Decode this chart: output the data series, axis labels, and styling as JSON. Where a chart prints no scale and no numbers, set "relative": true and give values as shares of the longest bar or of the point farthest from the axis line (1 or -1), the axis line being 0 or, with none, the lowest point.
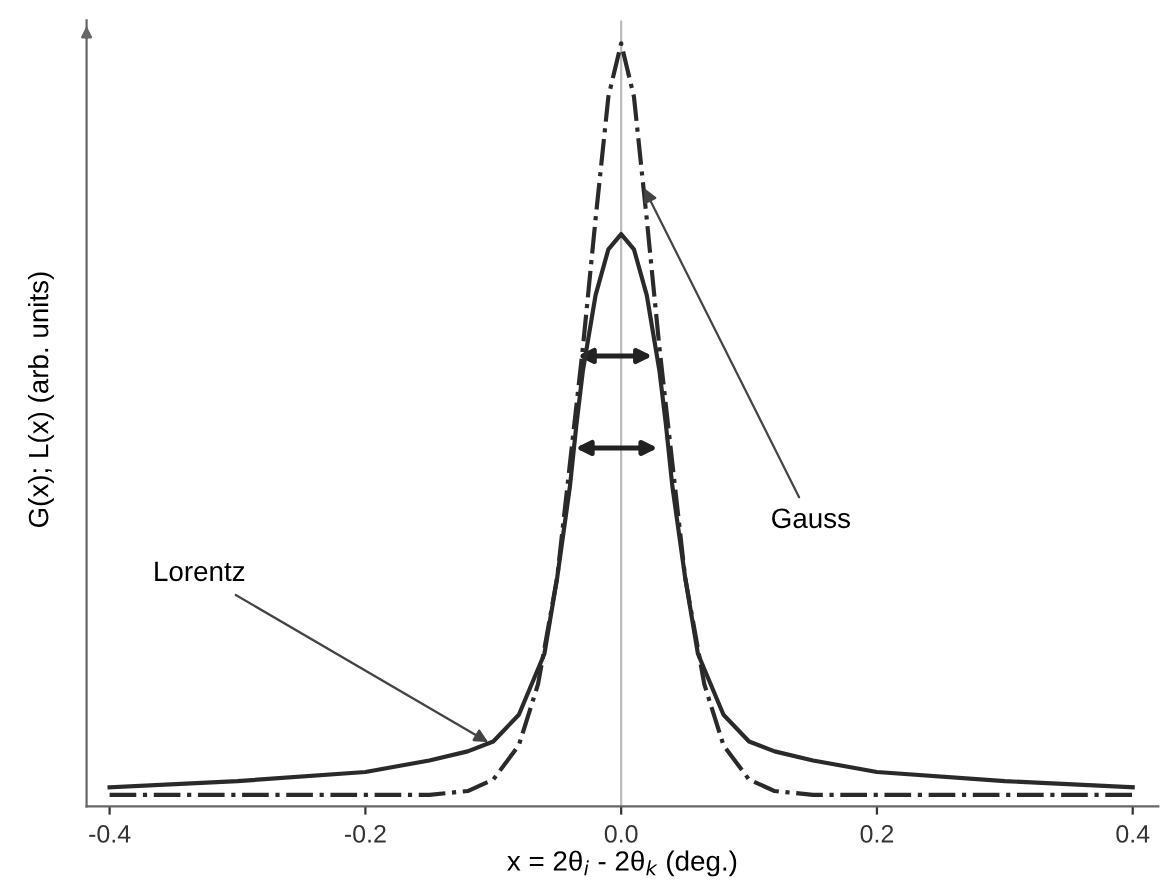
{
  "chart_data": {
    "type": "line",
    "relative": true,
    "xlabel": "x = 2θ$_{i}$ - 2θ$_{k}$ (deg.)",
    "ylabel": "G(x); L(x) (arb. units)",
    "xlim": [
      -0.418,
      0.42
    ],
    "xticks": [
      -0.4,
      -0.2,
      {
        "value": 0,
        "label": "0.0"
      },
      0.2,
      0.4
    ],
    "grid": false,
    "marker": "none",
    "series": [
      {
        "color": "#2a2a2a",
        "line_style": "solid",
        "x": [
          -0.4,
          -0.3,
          -0.2,
          -0.15,
          -0.12,
          -0.1,
          -0.08,
          -0.06,
          -0.05,
          -0.04,
          -0.035,
          -0.03,
          -0.02,
          -0.01,
          0,
          0.01,
          0.02,
          0.03,
          0.035,
          0.04,
          0.05,
          0.06,
          0.08,
          0.1,
          0.12,
          0.15,
          0.2,
          0.3,
          0.4
        ],
        "values": [
          0.025,
          0.033,
          0.045,
          0.06,
          0.072,
          0.085,
          0.12,
          0.2,
          0.3,
          0.42,
          0.5,
          0.57,
          0.67,
          0.73,
          0.75,
          0.73,
          0.67,
          0.57,
          0.5,
          0.42,
          0.3,
          0.2,
          0.12,
          0.085,
          0.072,
          0.06,
          0.045,
          0.033,
          0.025
        ]
      },
      {
        "color": "#2a2a2a",
        "line_style": "dashdot",
        "x": [
          -0.4,
          -0.15,
          -0.12,
          -0.1,
          -0.08,
          -0.065,
          -0.05,
          -0.04,
          -0.03,
          -0.02,
          -0.01,
          0,
          0.01,
          0.02,
          0.03,
          0.04,
          0.05,
          0.065,
          0.08,
          0.1,
          0.12,
          0.15,
          0.4
        ],
        "values": [
          0.015,
          0.015,
          0.02,
          0.035,
          0.08,
          0.16,
          0.3,
          0.45,
          0.6,
          0.77,
          0.93,
          1,
          0.93,
          0.77,
          0.6,
          0.45,
          0.3,
          0.16,
          0.08,
          0.035,
          0.02,
          0.015,
          0.015
        ]
      }
    ],
    "ref_lines": [
      {
        "axis": "x",
        "value": 0,
        "color": "#bbbbbb"
      }
    ],
    "annotations": [
      {
        "text": "Lorentz",
        "x": -0.104,
        "y": 0.084
      },
      {
        "text": "Gauss",
        "x": 0.018,
        "y": 0.81
      }
    ]
  }
}
